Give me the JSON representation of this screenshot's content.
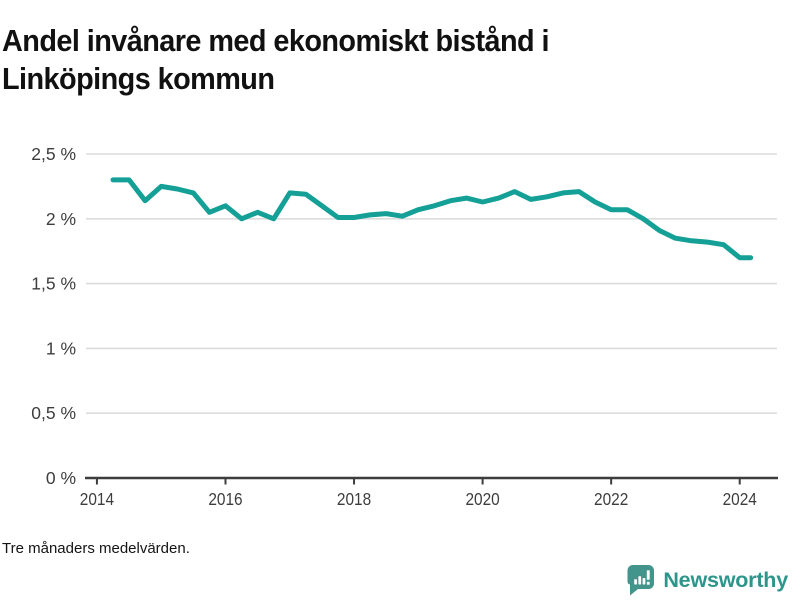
{
  "title": {
    "full": "Andel invånare med ekonomiskt bistånd i Linköpings kommun",
    "lines": [
      "Andel invånare med ekonomiskt bistånd i",
      "Linköpings kommun"
    ]
  },
  "footnote": "Tre månaders medelvärden.",
  "brand": {
    "name": "Newsworthy",
    "icon": "newsworthy-speech-bubble-bar-chart-icon",
    "icon_color": "#43948b",
    "text_color": "#2e958b"
  },
  "colors": {
    "line": "#14a096",
    "grid": "#dcdcdc",
    "axis": "#3d3d3d",
    "tick_label": "#3d3d3d",
    "title": "#111111",
    "background": "#ffffff"
  },
  "chart_data": {
    "type": "line",
    "title": "Andel invånare med ekonomiskt bistånd i Linköpings kommun",
    "series_name": "Andel invånare med ekonomiskt bistånd",
    "unit": "%",
    "decimal_style": "comma",
    "x": [
      2014.25,
      2014.5,
      2014.75,
      2015.0,
      2015.25,
      2015.5,
      2015.75,
      2016.0,
      2016.25,
      2016.5,
      2016.75,
      2017.0,
      2017.25,
      2017.5,
      2017.75,
      2018.0,
      2018.25,
      2018.5,
      2018.75,
      2019.0,
      2019.25,
      2019.5,
      2019.75,
      2020.0,
      2020.25,
      2020.5,
      2020.75,
      2021.0,
      2021.25,
      2021.5,
      2021.75,
      2022.0,
      2022.25,
      2022.5,
      2022.75,
      2023.0,
      2023.25,
      2023.5,
      2023.75,
      2024.0,
      2024.17
    ],
    "values": [
      2.3,
      2.3,
      2.14,
      2.25,
      2.23,
      2.2,
      2.05,
      2.1,
      2.0,
      2.05,
      2.0,
      2.2,
      2.19,
      2.1,
      2.01,
      2.01,
      2.03,
      2.04,
      2.02,
      2.07,
      2.1,
      2.14,
      2.16,
      2.13,
      2.16,
      2.21,
      2.15,
      2.17,
      2.2,
      2.21,
      2.13,
      2.07,
      2.07,
      2.0,
      1.91,
      1.85,
      1.83,
      1.82,
      1.8,
      1.7,
      1.7
    ],
    "ylim": [
      0,
      2.5
    ],
    "xlim": [
      2013.83,
      2024.58
    ],
    "yticks": [
      {
        "value": 0,
        "label": "0 %"
      },
      {
        "value": 0.5,
        "label": "0,5 %"
      },
      {
        "value": 1,
        "label": "1 %"
      },
      {
        "value": 1.5,
        "label": "1,5 %"
      },
      {
        "value": 2,
        "label": "2 %"
      },
      {
        "value": 2.5,
        "label": "2,5 %"
      }
    ],
    "xticks": [
      {
        "value": 2014,
        "label": "2014"
      },
      {
        "value": 2016,
        "label": "2016"
      },
      {
        "value": 2018,
        "label": "2018"
      },
      {
        "value": 2020,
        "label": "2020"
      },
      {
        "value": 2022,
        "label": "2022"
      },
      {
        "value": 2024,
        "label": "2024"
      }
    ],
    "grid": true,
    "legend": "none"
  }
}
